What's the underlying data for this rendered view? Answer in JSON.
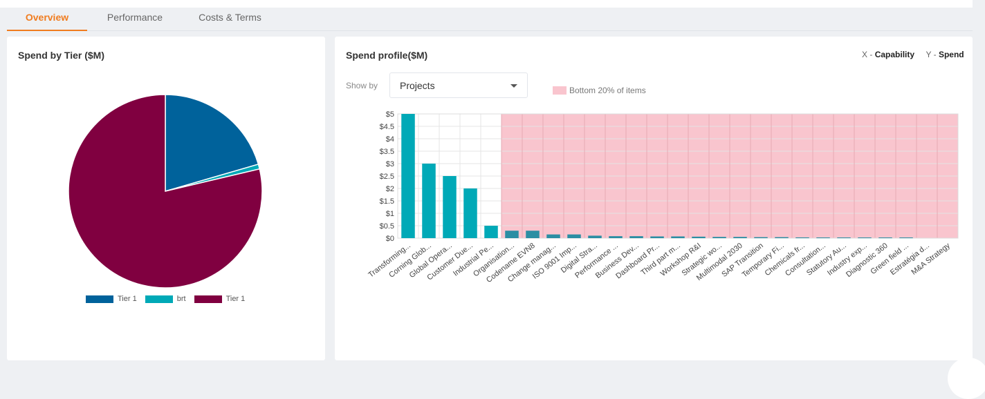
{
  "tabs": [
    {
      "label": "Overview",
      "active": true
    },
    {
      "label": "Performance",
      "active": false
    },
    {
      "label": "Costs & Terms",
      "active": false
    }
  ],
  "left_card": {
    "title": "Spend by Tier ($M)"
  },
  "right_card": {
    "title": "Spend profile($M)",
    "axis_hint": {
      "x_prefix": "X",
      "x_label": "Capability",
      "y_prefix": "Y",
      "y_label": "Spend",
      "separator": " - "
    },
    "show_by_label": "Show by",
    "show_by_value": "Projects",
    "bottom_legend": "Bottom 20% of items"
  },
  "chart_data": [
    {
      "type": "pie",
      "title": "Spend by Tier ($M)",
      "slices": [
        {
          "label": "Tier 1",
          "value": 20.5,
          "color": "#00629b"
        },
        {
          "label": "brt",
          "value": 0.8,
          "color": "#00a9b7"
        },
        {
          "label": "Tier 1",
          "value": 78.7,
          "color": "#800040"
        }
      ],
      "legend_placement": "bottom"
    },
    {
      "type": "bar",
      "title": "Spend profile($M)",
      "xlabel": "Capability",
      "ylabel": "Spend",
      "ylim": [
        0,
        5
      ],
      "yticks": [
        "$0",
        "$0.5",
        "$1",
        "$1.5",
        "$2",
        "$2.5",
        "$3",
        "$3.5",
        "$4",
        "$4.5",
        "$5"
      ],
      "grid": true,
      "highlight_from_index": 5,
      "colors": {
        "top": "#00a9b7",
        "bottom": "#2b8ea3",
        "highlight": "#f9c5ce"
      },
      "categories": [
        "Transforming...",
        "Corning Glob...",
        "Global Opera...",
        "Customer Due...",
        "Industrial Pe...",
        "Organisation...",
        "Codename EVN8",
        "Change manag...",
        "ISO 9001 Imp...",
        "Digital Stra...",
        "Performance ...",
        "Business Dev...",
        "Dashboard Pr...",
        "Third part m...",
        "Workshop R&I",
        "Strategic wo...",
        "Multimodal 2030",
        "SAP Transition",
        "Temporary Fi...",
        "Chemicals fr...",
        "Consultation...",
        "Statutory Au...",
        "Industry exp...",
        "Diagnostic 360",
        "Green field ...",
        "Estratégia d...",
        "M&A Strategy"
      ],
      "values": [
        5,
        3,
        2.5,
        2,
        0.5,
        0.3,
        0.3,
        0.15,
        0.15,
        0.1,
        0.08,
        0.08,
        0.07,
        0.07,
        0.06,
        0.05,
        0.05,
        0.04,
        0.04,
        0.03,
        0.02,
        0.01,
        0.01,
        0.01,
        0.005,
        0,
        0
      ]
    }
  ]
}
